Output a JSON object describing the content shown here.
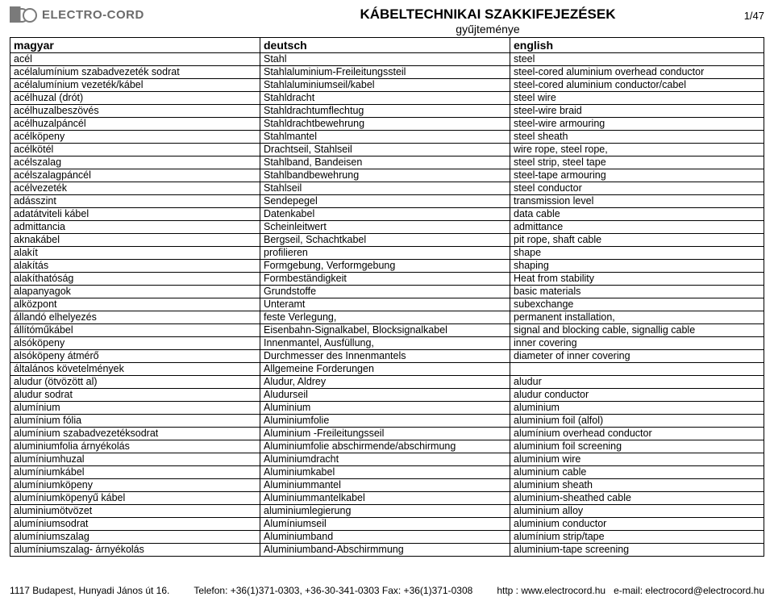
{
  "logo_name": "ELECTRO-CORD",
  "title": "KÁBELTECHNIKAI SZAKKIFEJEZÉSEK",
  "subtitle": "gyűjteménye",
  "page_number": "1/47",
  "columns": [
    "magyar",
    "deutsch",
    "english"
  ],
  "rows": [
    [
      "acél",
      "Stahl",
      "steel"
    ],
    [
      "acélalumínium szabadvezeték sodrat",
      "Stahlaluminium-Freileitungssteil",
      "steel-cored aluminium overhead conductor"
    ],
    [
      "acélalumínium vezeték/kábel",
      "Stahlaluminiumseil/kabel",
      "steel-cored aluminium conductor/cabel"
    ],
    [
      "acélhuzal (drót)",
      "Stahldracht",
      "steel wire"
    ],
    [
      "acélhuzalbeszövés",
      "Stahldrachtumflechtug",
      "steel-wire braid"
    ],
    [
      "acélhuzalpáncél",
      "Stahldrachtbewehrung",
      "steel-wire armouring"
    ],
    [
      "acélköpeny",
      "Stahlmantel",
      "steel sheath"
    ],
    [
      "acélkötél",
      "Drachtseil, Stahlseil",
      "wire rope, steel rope,"
    ],
    [
      "acélszalag",
      "Stahlband, Bandeisen",
      "steel strip, steel tape"
    ],
    [
      "acélszalagpáncél",
      "Stahlbandbewehrung",
      "steel-tape armouring"
    ],
    [
      "acélvezeték",
      "Stahlseil",
      "steel conductor"
    ],
    [
      "adásszint",
      "Sendepegel",
      "transmission level"
    ],
    [
      "adatátviteli kábel",
      "Datenkabel",
      "data cable"
    ],
    [
      "admittancia",
      "Scheinleitwert",
      "admittance"
    ],
    [
      "aknakábel",
      "Bergseil, Schachtkabel",
      "pit rope, shaft  cable"
    ],
    [
      "alakít",
      "profilieren",
      "shape"
    ],
    [
      "alakítás",
      "Formgebung, Verformgebung",
      "shaping"
    ],
    [
      "alakíthatóság",
      "Formbeständigkeit",
      "Heat from stability"
    ],
    [
      "alapanyagok",
      "Grundstoffe",
      "basic materials"
    ],
    [
      "alközpont",
      "Unteramt",
      "subexchange"
    ],
    [
      "állandó elhelyezés",
      "feste Verlegung,",
      "permanent installation,"
    ],
    [
      "állítóműkábel",
      "Eisenbahn-Signalkabel, Blocksignalkabel",
      "signal and blocking cable, signallig cable"
    ],
    [
      "alsóköpeny",
      "Innenmantel, Ausfüllung,",
      "inner covering"
    ],
    [
      "alsóköpeny átmérő",
      "Durchmesser des Innenmantels",
      "diameter of inner covering"
    ],
    [
      "általános követelmények",
      "Allgemeine Forderungen",
      ""
    ],
    [
      "aludur (ötvözött al)",
      "Aludur, Aldrey",
      "aludur"
    ],
    [
      "aludur sodrat",
      "Aludurseil",
      "aludur conductor"
    ],
    [
      "alumínium",
      "Aluminium",
      "aluminium"
    ],
    [
      "alumínium fólia",
      "Aluminiumfolie",
      "aluminium foil (alfol)"
    ],
    [
      "alumínium szabadvezetéksodrat",
      "Aluminium -Freileitungsseil",
      "alumínium overhead conductor"
    ],
    [
      "aluminiumfolia árnyékolás",
      "Aluminiumfolie abschirmende/abschirmung",
      "aluminium foil screening"
    ],
    [
      "alumíniumhuzal",
      "Aluminiumdracht",
      "aluminium wire"
    ],
    [
      "alumíniumkábel",
      "Aluminiumkabel",
      "aluminium cable"
    ],
    [
      "alumíniumköpeny",
      "Aluminiummantel",
      "aluminium sheath"
    ],
    [
      "alumíniumköpenyű kábel",
      "Aluminiummantelkabel",
      "aluminium-sheathed cable"
    ],
    [
      "aluminiumötvözet",
      "aluminiumlegierung",
      "aluminium alloy"
    ],
    [
      "alumíniumsodrat",
      "Alumíniumseil",
      "aluminium conductor"
    ],
    [
      "alumíniumszalag",
      "Aluminiumband",
      "alumínium strip/tape"
    ],
    [
      "alumíniumszalag- árnyékolás",
      "Aluminiumband-Abschirmmung",
      "aluminium-tape screening"
    ]
  ],
  "footer": {
    "address": "1117 Budapest, Hunyadi János út 16.",
    "phone": "Telefon: +36(1)371-0303, +36-30-341-0303 Fax: +36(1)371-0308",
    "web": "http : www.electrocord.hu",
    "email": "e-mail: electrocord@electrocord.hu"
  }
}
